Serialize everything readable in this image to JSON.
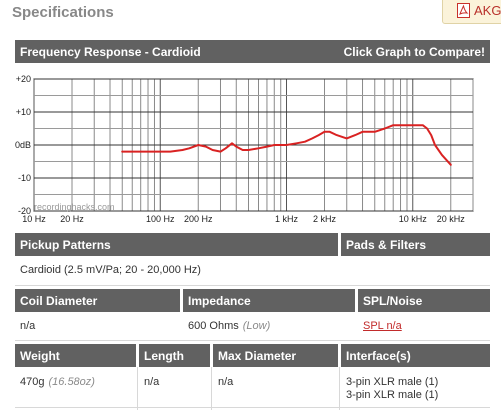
{
  "page": {
    "title": "Specifications",
    "pdf_label": "AKG"
  },
  "graph": {
    "title": "Frequency Response - Cardioid",
    "compare_label": "Click Graph to Compare!",
    "y_ticks": [
      "+20",
      "+10",
      "0dB",
      "-10",
      "-20"
    ],
    "x_ticks": [
      "10 Hz",
      "20 Hz",
      "100 Hz",
      "200 Hz",
      "1 kHz",
      "2 kHz",
      "10 kHz",
      "20 kHz"
    ],
    "watermark": "recordinghacks.com",
    "line_color": "#d92222"
  },
  "chart_data": {
    "type": "line",
    "title": "Frequency Response - Cardioid",
    "xlabel": "",
    "ylabel": "",
    "x_scale": "log",
    "xlim": [
      10,
      30000
    ],
    "ylim": [
      -20,
      20
    ],
    "grid": true,
    "series": [
      {
        "name": "Cardioid",
        "x": [
          50,
          80,
          100,
          120,
          150,
          170,
          200,
          230,
          260,
          300,
          330,
          370,
          400,
          450,
          500,
          600,
          700,
          800,
          1000,
          1200,
          1400,
          1600,
          1800,
          2000,
          2200,
          2500,
          3000,
          3500,
          4000,
          4500,
          5000,
          6000,
          7000,
          8000,
          9000,
          10000,
          11000,
          12000,
          13000,
          14000,
          15000,
          17000,
          20000
        ],
        "y": [
          -2,
          -2,
          -2,
          -2,
          -1.5,
          -1,
          0,
          -0.5,
          -1.5,
          -2,
          -1,
          0.5,
          -0.5,
          -1.5,
          -1.5,
          -1,
          -0.5,
          0,
          0,
          0.5,
          1,
          2,
          3,
          4,
          4,
          3,
          2,
          3,
          4,
          4,
          4,
          5,
          6,
          6,
          6,
          6,
          6,
          6,
          5,
          3,
          0,
          -3,
          -6
        ]
      }
    ]
  },
  "pickup": {
    "header": "Pickup Patterns",
    "value": "Cardioid (2.5 mV/Pa; 20 - 20,000 Hz)"
  },
  "pads": {
    "header": "Pads & Filters"
  },
  "coil": {
    "header": "Coil Diameter",
    "value": "n/a"
  },
  "impedance": {
    "header": "Impedance",
    "value": "600 Ohms",
    "note": "(Low)"
  },
  "spl": {
    "header": "SPL/Noise",
    "value": "SPL n/a"
  },
  "weight": {
    "header": "Weight",
    "value": "470g",
    "note": "(16.58oz)"
  },
  "length": {
    "header": "Length",
    "value": "n/a"
  },
  "max_diameter": {
    "header": "Max Diameter",
    "value": "n/a"
  },
  "interfaces": {
    "header": "Interface(s)",
    "items": [
      "3-pin XLR male (1)",
      "3-pin XLR male (1)"
    ]
  }
}
